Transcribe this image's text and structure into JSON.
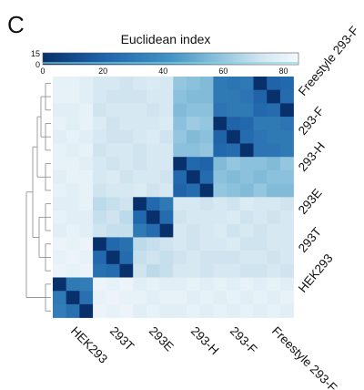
{
  "panel_label": "C",
  "chart_data": {
    "type": "heatmap",
    "title": "Euclidean index",
    "colorbar": {
      "ticks": [
        "0",
        "20",
        "40",
        "60",
        "80"
      ],
      "range": [
        0,
        85
      ],
      "hist_ticks": [
        "15",
        "0"
      ],
      "colors": [
        "#08306b",
        "#2166ac",
        "#4393c3",
        "#92c5de",
        "#d1e5f0",
        "#f4f9fd"
      ]
    },
    "row_labels": [
      "Freestyle 293-F",
      "293-F",
      "293-H",
      "293E",
      "293T",
      "HEK293"
    ],
    "col_labels": [
      "HEK293",
      "293T",
      "293E",
      "293-H",
      "293-F",
      "Freestyle 293-F"
    ],
    "row_order_top_to_bottom": [
      "Freestyle 293-F",
      "293-F",
      "293-H",
      "293E",
      "293T",
      "HEK293"
    ],
    "col_order_left_to_right": [
      "HEK293",
      "293T",
      "293E",
      "293-H",
      "293-F",
      "Freestyle 293-F"
    ],
    "samples_per_group": 3,
    "values": [
      [
        80,
        80,
        78,
        74,
        74,
        72,
        74,
        76,
        74,
        60,
        58,
        56,
        30,
        28,
        30,
        0,
        20,
        22
      ],
      [
        80,
        80,
        78,
        74,
        72,
        72,
        72,
        74,
        74,
        58,
        56,
        56,
        30,
        30,
        28,
        20,
        0,
        24
      ],
      [
        78,
        78,
        80,
        72,
        74,
        74,
        74,
        72,
        74,
        56,
        58,
        58,
        28,
        30,
        30,
        22,
        24,
        0
      ],
      [
        80,
        78,
        80,
        76,
        72,
        74,
        74,
        74,
        76,
        58,
        62,
        60,
        0,
        20,
        22,
        30,
        30,
        28
      ],
      [
        78,
        80,
        78,
        74,
        72,
        72,
        74,
        76,
        72,
        60,
        56,
        58,
        20,
        0,
        24,
        28,
        30,
        30
      ],
      [
        80,
        78,
        80,
        72,
        74,
        74,
        72,
        74,
        74,
        58,
        58,
        60,
        22,
        24,
        0,
        28,
        28,
        30
      ],
      [
        80,
        80,
        78,
        74,
        72,
        74,
        72,
        74,
        74,
        0,
        22,
        20,
        56,
        60,
        58,
        58,
        56,
        60
      ],
      [
        78,
        80,
        80,
        74,
        76,
        72,
        74,
        74,
        72,
        22,
        0,
        24,
        58,
        56,
        58,
        56,
        58,
        58
      ],
      [
        80,
        78,
        80,
        72,
        74,
        74,
        76,
        72,
        74,
        20,
        24,
        0,
        60,
        58,
        56,
        60,
        56,
        56
      ],
      [
        78,
        78,
        80,
        68,
        70,
        72,
        0,
        22,
        30,
        74,
        74,
        72,
        74,
        72,
        76,
        74,
        74,
        72
      ],
      [
        80,
        78,
        78,
        70,
        72,
        68,
        22,
        0,
        24,
        72,
        74,
        74,
        74,
        76,
        72,
        74,
        72,
        74
      ],
      [
        78,
        80,
        78,
        72,
        70,
        70,
        30,
        24,
        0,
        74,
        72,
        74,
        76,
        72,
        74,
        72,
        74,
        74
      ],
      [
        82,
        80,
        82,
        0,
        22,
        26,
        68,
        70,
        72,
        74,
        72,
        74,
        74,
        76,
        72,
        72,
        74,
        74
      ],
      [
        80,
        82,
        80,
        22,
        0,
        24,
        70,
        72,
        70,
        72,
        74,
        72,
        72,
        72,
        74,
        74,
        72,
        74
      ],
      [
        82,
        80,
        82,
        26,
        24,
        0,
        72,
        68,
        70,
        74,
        74,
        72,
        74,
        74,
        72,
        72,
        74,
        72
      ],
      [
        0,
        30,
        32,
        82,
        80,
        82,
        78,
        80,
        78,
        78,
        80,
        78,
        80,
        78,
        80,
        78,
        80,
        78
      ],
      [
        30,
        0,
        26,
        80,
        82,
        80,
        80,
        78,
        80,
        80,
        78,
        80,
        78,
        80,
        78,
        80,
        78,
        80
      ],
      [
        32,
        26,
        0,
        82,
        80,
        82,
        78,
        80,
        78,
        78,
        80,
        78,
        80,
        78,
        80,
        78,
        80,
        78
      ]
    ]
  }
}
